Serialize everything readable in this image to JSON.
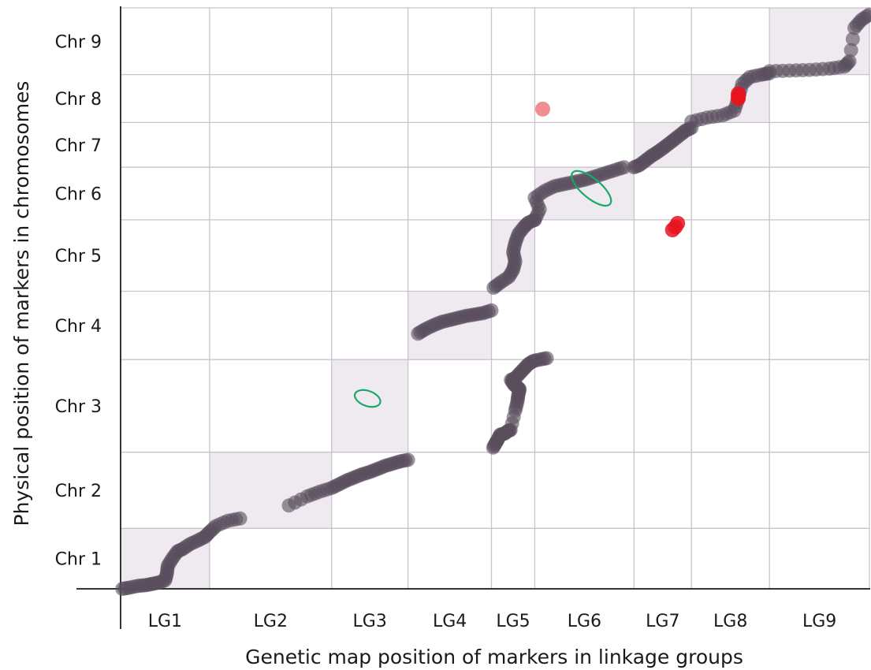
{
  "chart_data": {
    "type": "scatter",
    "title": "",
    "xlabel": "Genetic map position of markers in linkage groups",
    "ylabel": "Physical position of markers in chromosomes",
    "x_categories": [
      "LG1",
      "LG2",
      "LG3",
      "LG4",
      "LG5",
      "LG6",
      "LG7",
      "LG8",
      "LG9"
    ],
    "y_categories": [
      "Chr 1",
      "Chr 2",
      "Chr 3",
      "Chr 4",
      "Chr 5",
      "Chr 6",
      "Chr 7",
      "Chr 8",
      "Chr 9"
    ],
    "grid": true,
    "legend": "none",
    "x_relative_widths": [
      113,
      155,
      97,
      106,
      55,
      126,
      73,
      99,
      127
    ],
    "y_relative_heights": [
      77,
      97,
      118,
      87,
      91,
      67,
      57,
      61,
      85
    ],
    "colors": {
      "marker": "#5a4f5e",
      "outlier": "#e8141e",
      "outlier_light": "#f07a80",
      "block": "#efe9f0",
      "grid": "#c9c3cc",
      "axis": "#333333",
      "highlight": "#1aa86a"
    },
    "series": [
      {
        "group": "LG1/Chr 1",
        "points": [
          [
            0.02,
            0.0
          ],
          [
            0.1,
            0.02
          ],
          [
            0.2,
            0.05
          ],
          [
            0.28,
            0.06
          ],
          [
            0.35,
            0.08
          ],
          [
            0.42,
            0.1
          ],
          [
            0.5,
            0.14
          ],
          [
            0.52,
            0.25
          ],
          [
            0.53,
            0.38
          ],
          [
            0.58,
            0.5
          ],
          [
            0.64,
            0.62
          ],
          [
            0.7,
            0.66
          ],
          [
            0.78,
            0.74
          ],
          [
            0.87,
            0.8
          ],
          [
            0.95,
            0.86
          ],
          [
            1.0,
            0.94
          ],
          [
            1.05,
            1.03
          ],
          [
            1.15,
            1.1
          ],
          [
            1.25,
            1.13
          ]
        ]
      },
      {
        "group": "LG2/Chr 2",
        "points": [
          [
            0.65,
            0.3
          ],
          [
            0.8,
            0.42
          ],
          [
            0.9,
            0.48
          ],
          [
            1.0,
            0.53
          ],
          [
            1.1,
            0.58
          ],
          [
            1.2,
            0.63
          ],
          [
            1.3,
            0.67
          ],
          [
            1.4,
            0.71
          ],
          [
            1.5,
            0.74
          ],
          [
            1.6,
            0.78
          ],
          [
            1.7,
            0.82
          ],
          [
            1.8,
            0.85
          ],
          [
            1.9,
            0.88
          ],
          [
            2.0,
            0.9
          ]
        ]
      },
      {
        "group": "LG3/Chr 3",
        "points": [
          [
            2.04,
            0.05
          ],
          [
            2.1,
            0.1
          ],
          [
            2.15,
            0.14
          ],
          [
            2.2,
            0.19
          ],
          [
            2.3,
            0.2
          ],
          [
            2.38,
            0.23
          ],
          [
            2.44,
            0.24
          ],
          [
            2.55,
            0.45
          ],
          [
            2.6,
            0.55
          ],
          [
            2.62,
            0.62
          ],
          [
            2.65,
            0.68
          ],
          [
            2.6,
            0.7
          ],
          [
            2.52,
            0.73
          ],
          [
            2.45,
            0.78
          ],
          [
            2.55,
            0.8
          ],
          [
            2.65,
            0.85
          ],
          [
            2.75,
            0.9
          ],
          [
            2.85,
            0.95
          ],
          [
            2.95,
            0.98
          ],
          [
            3.05,
            1.0
          ],
          [
            3.12,
            1.02
          ]
        ]
      },
      {
        "group": "LG4/Chr 4",
        "points": [
          [
            0.12,
            0.38
          ],
          [
            0.2,
            0.44
          ],
          [
            0.3,
            0.5
          ],
          [
            0.4,
            0.55
          ],
          [
            0.5,
            0.58
          ],
          [
            0.6,
            0.61
          ],
          [
            0.7,
            0.64
          ],
          [
            0.8,
            0.66
          ],
          [
            0.9,
            0.68
          ],
          [
            1.0,
            0.72
          ]
        ]
      },
      {
        "group": "LG5/Chr 5",
        "points": [
          [
            0.05,
            0.05
          ],
          [
            0.2,
            0.12
          ],
          [
            0.4,
            0.2
          ],
          [
            0.5,
            0.3
          ],
          [
            0.55,
            0.42
          ],
          [
            0.5,
            0.55
          ],
          [
            0.55,
            0.68
          ],
          [
            0.62,
            0.8
          ],
          [
            0.75,
            0.9
          ],
          [
            0.85,
            0.96
          ],
          [
            1.0,
            1.0
          ]
        ]
      },
      {
        "group": "LG6/Chr 6",
        "points": [
          [
            0.0,
            0.0
          ],
          [
            0.05,
            0.2
          ],
          [
            0.0,
            0.42
          ],
          [
            0.1,
            0.55
          ],
          [
            0.2,
            0.64
          ],
          [
            0.3,
            0.68
          ],
          [
            0.4,
            0.72
          ],
          [
            0.5,
            0.76
          ],
          [
            0.6,
            0.82
          ],
          [
            0.7,
            0.88
          ],
          [
            0.8,
            0.94
          ],
          [
            0.9,
            1.0
          ]
        ]
      },
      {
        "group": "LG7/Chr 7",
        "points": [
          [
            0.0,
            0.0
          ],
          [
            0.1,
            0.05
          ],
          [
            0.2,
            0.15
          ],
          [
            0.3,
            0.25
          ],
          [
            0.4,
            0.33
          ],
          [
            0.5,
            0.42
          ],
          [
            0.6,
            0.52
          ],
          [
            0.7,
            0.62
          ],
          [
            0.8,
            0.72
          ],
          [
            0.9,
            0.82
          ],
          [
            1.0,
            0.88
          ]
        ]
      },
      {
        "group": "LG8/Chr 8",
        "points": [
          [
            0.0,
            0.02
          ],
          [
            0.2,
            0.1
          ],
          [
            0.4,
            0.15
          ],
          [
            0.55,
            0.25
          ],
          [
            0.6,
            0.5
          ],
          [
            0.65,
            0.8
          ],
          [
            0.75,
            0.95
          ],
          [
            0.9,
            1.0
          ],
          [
            1.0,
            1.02
          ]
        ]
      },
      {
        "group": "LG9/Chr 9",
        "points": [
          [
            0.0,
            0.05
          ],
          [
            0.2,
            0.06
          ],
          [
            0.4,
            0.07
          ],
          [
            0.6,
            0.09
          ],
          [
            0.75,
            0.12
          ],
          [
            0.8,
            0.2
          ],
          [
            0.85,
            0.7
          ],
          [
            0.92,
            0.82
          ],
          [
            1.0,
            0.9
          ]
        ]
      }
    ],
    "outliers": [
      {
        "x": 5.08,
        "y": 7.28,
        "shade": "outlier_light"
      },
      {
        "x": 6.67,
        "y": 4.86,
        "shade": "outlier"
      },
      {
        "x": 6.72,
        "y": 4.9,
        "shade": "outlier"
      },
      {
        "x": 6.76,
        "y": 4.95,
        "shade": "outlier"
      },
      {
        "x": 7.6,
        "y": 7.55,
        "shade": "outlier"
      },
      {
        "x": 7.6,
        "y": 7.5,
        "shade": "outlier"
      },
      {
        "x": 7.6,
        "y": 7.6,
        "shade": "outlier"
      }
    ],
    "highlighted_regions": [
      {
        "x": 2.47,
        "y": 2.58,
        "rx": 0.3,
        "ry": 0.25,
        "rotate": 20
      },
      {
        "x": 5.57,
        "y": 5.6,
        "rx": 0.55,
        "ry": 0.32,
        "rotate": 40
      }
    ]
  }
}
